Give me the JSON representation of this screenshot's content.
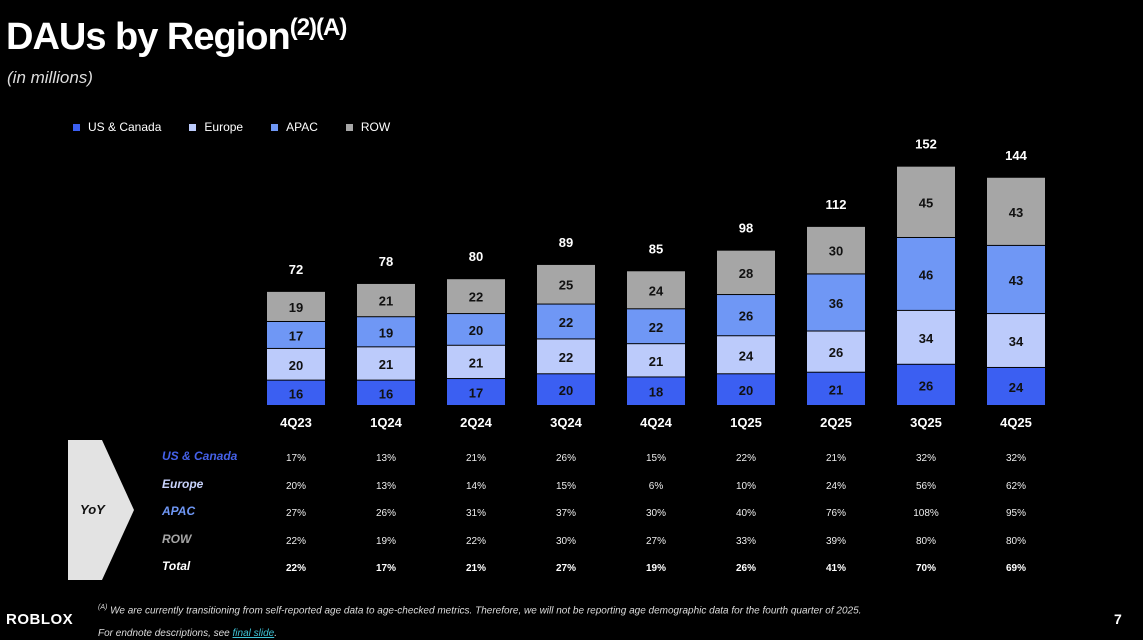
{
  "title": "DAUs by Region",
  "title_sup": "(2)(A)",
  "subtitle": "(in millions)",
  "chart_data": {
    "type": "bar",
    "stacked": true,
    "categories": [
      "4Q23",
      "1Q24",
      "2Q24",
      "3Q24",
      "4Q24",
      "1Q25",
      "2Q25",
      "3Q25",
      "4Q25"
    ],
    "series": [
      {
        "name": "US & Canada",
        "color": "#3b5ff2",
        "values": [
          16,
          16,
          17,
          20,
          18,
          20,
          21,
          26,
          24
        ]
      },
      {
        "name": "Europe",
        "color": "#bccbfb",
        "values": [
          20,
          21,
          21,
          22,
          21,
          24,
          26,
          34,
          34
        ]
      },
      {
        "name": "APAC",
        "color": "#6f97f5",
        "values": [
          17,
          19,
          20,
          22,
          22,
          26,
          36,
          46,
          43
        ]
      },
      {
        "name": "ROW",
        "color": "#a6a6a6",
        "values": [
          19,
          21,
          22,
          25,
          24,
          28,
          30,
          45,
          43
        ]
      }
    ],
    "totals": [
      72,
      78,
      80,
      89,
      85,
      98,
      112,
      152,
      144
    ],
    "legend_position": "top-left"
  },
  "yoy": {
    "label": "YoY",
    "rows": [
      {
        "label": "US & Canada",
        "color": "#4561e8",
        "values": [
          "17%",
          "13%",
          "21%",
          "26%",
          "15%",
          "22%",
          "21%",
          "32%",
          "32%"
        ]
      },
      {
        "label": "Europe",
        "color": "#c7d2fb",
        "values": [
          "20%",
          "13%",
          "14%",
          "15%",
          "6%",
          "10%",
          "24%",
          "56%",
          "62%"
        ]
      },
      {
        "label": "APAC",
        "color": "#6f97f5",
        "values": [
          "27%",
          "26%",
          "31%",
          "37%",
          "30%",
          "40%",
          "76%",
          "108%",
          "95%"
        ]
      },
      {
        "label": "ROW",
        "color": "#a6a6a6",
        "values": [
          "22%",
          "19%",
          "22%",
          "30%",
          "27%",
          "33%",
          "39%",
          "80%",
          "80%"
        ]
      },
      {
        "label": "Total",
        "color": "#ffffff",
        "bold": true,
        "values": [
          "22%",
          "17%",
          "21%",
          "27%",
          "19%",
          "26%",
          "41%",
          "70%",
          "69%"
        ]
      }
    ]
  },
  "footnote_mark": "(A)",
  "footnote": "We are currently transitioning from self-reported age data to age-checked metrics. Therefore, we will not be reporting age demographic data for the fourth quarter of 2025.",
  "endnote_prefix": "For endnote descriptions, see ",
  "endnote_link": "final slide",
  "endnote_suffix": ".",
  "logo": "ROBLOX",
  "page_number": "7"
}
